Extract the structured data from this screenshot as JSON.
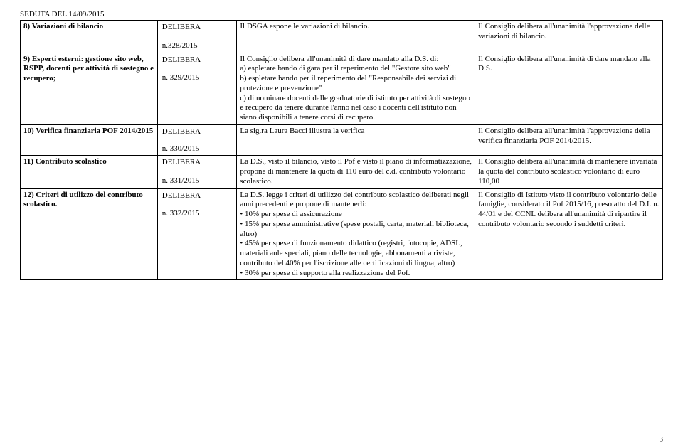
{
  "header": "SEDUTA DEL  14/09/2015",
  "rows": {
    "r8": {
      "c1": "8) Variazioni di bilancio",
      "c2_l1": "DELIBERA",
      "c2_l2": "n.328/2015",
      "c3": "Il DSGA espone le variazioni di bilancio.",
      "c4": "Il Consiglio delibera all'unanimità l'approvazione delle variazioni di bilancio."
    },
    "r9": {
      "c1": "9) Esperti esterni: gestione sito web, RSPP, docenti per attività di sostegno e recupero;",
      "c2_l1": "DELIBERA",
      "c2_l2": "n. 329/2015",
      "c3_p1": "Il Consiglio delibera all'unanimità di dare mandato alla D.S. di:",
      "c3_a": "a)          espletare bando di gara per il reperimento del \"Gestore sito web\"",
      "c3_b": "b)       espletare  bando  per  il  reperimento  del \"Responsabile   dei   servizi   di   protezione   e prevenzione\"",
      "c3_c": "c)        di  nominare  docenti  dalle  graduatorie  di istituto per attività di sostegno e recupero da tenere durante l'anno nel caso i docenti dell'istituto non siano disponibili a tenere corsi di recupero.",
      "c4": "Il Consiglio delibera all'unanimità di dare mandato alla D.S."
    },
    "r10": {
      "c1": "10)  Verifica  finanziaria  POF 2014/2015",
      "c2_l1": "DELIBERA",
      "c2_l2": "n. 330/2015",
      "c3": "La sig.ra Laura Bacci illustra la verifica",
      "c4": "Il Consiglio delibera all'unanimità l'approvazione della verifica finanziaria POF 2014/2015."
    },
    "r11": {
      "c1": "11) Contributo scolastico",
      "c2_l1": "DELIBERA",
      "c2_l2": "n. 331/2015",
      "c3": "La  D.S.,  visto  il  bilancio,  visto  il  Pof  e  visto  il piano di informatizzazione, propone di mantenere la quota di 110 euro del c.d. contributo volontario scolastico.",
      "c4": "Il Consiglio delibera all'unanimità di mantenere invariata la quota del contributo scolastico volontario di euro 110,00"
    },
    "r12": {
      "c1": "12)   Criteri   di   utilizzo   del contributo scolastico.",
      "c2_l1": "DELIBERA",
      "c2_l2": "n. 332/2015",
      "c3_p1": "La  D.S.  legge  i  criteri  di  utilizzo  del  contributo scolastico   deliberati   negli   anni   precedenti   e propone di mantenerli:",
      "c3_b1": "10% per spese di assicurazione",
      "c3_b2": "15%   per   spese   amministrative   (spese postali, carta, materiali biblioteca, altro)",
      "c3_b3": "45% per spese di funzionamento didattico (registri, fotocopie, ADSL, materiali aule speciali, piano  delle  tecnologie,  abbonamenti  a  riviste, contributo    del    40%    per    l'iscrizione    alle certificazioni di lingua, altro)",
      "c3_b4": "30%     per     spese     di     supporto     alla realizzazione del Pof.",
      "c4": "Il Consiglio di Istituto visto il contributo volontario delle famiglie, considerato il Pof 2015/16, preso atto del D.I. n. 44/01 e del CCNL delibera all'unanimità di ripartire il contributo volontario secondo i suddetti criteri."
    }
  },
  "pagenum": "3"
}
